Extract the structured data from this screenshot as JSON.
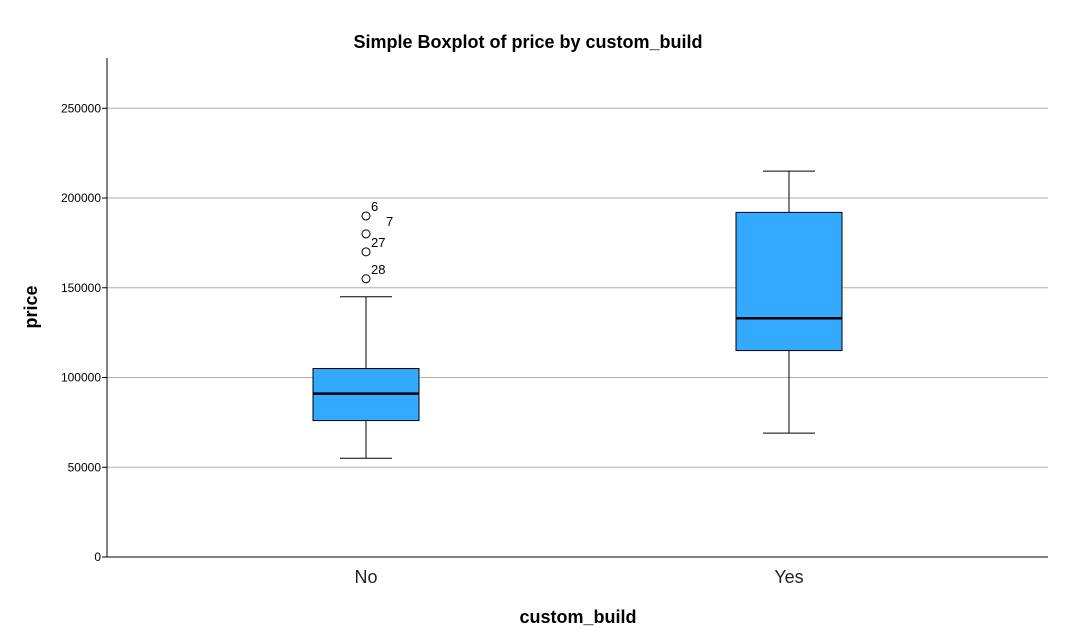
{
  "chart_data": {
    "type": "boxplot",
    "title": "Simple Boxplot of price by custom_build",
    "xlabel": "custom_build",
    "ylabel": "price",
    "ylim": [
      0,
      278000
    ],
    "yticks": [
      0,
      50000,
      100000,
      150000,
      200000,
      250000
    ],
    "grid": true,
    "box_color": "#33aaff",
    "categories": [
      "No",
      "Yes"
    ],
    "boxes": [
      {
        "category": "No",
        "whisker_low": 55000,
        "q1": 76000,
        "median": 91000,
        "q3": 105000,
        "whisker_high": 145000,
        "outliers": [
          {
            "label": "6",
            "value": 190000
          },
          {
            "label": "7",
            "value": 180000
          },
          {
            "label": "27",
            "value": 170000
          },
          {
            "label": "28",
            "value": 155000
          }
        ]
      },
      {
        "category": "Yes",
        "whisker_low": 69000,
        "q1": 115000,
        "median": 133000,
        "q3": 192000,
        "whisker_high": 215000,
        "outliers": []
      }
    ]
  }
}
